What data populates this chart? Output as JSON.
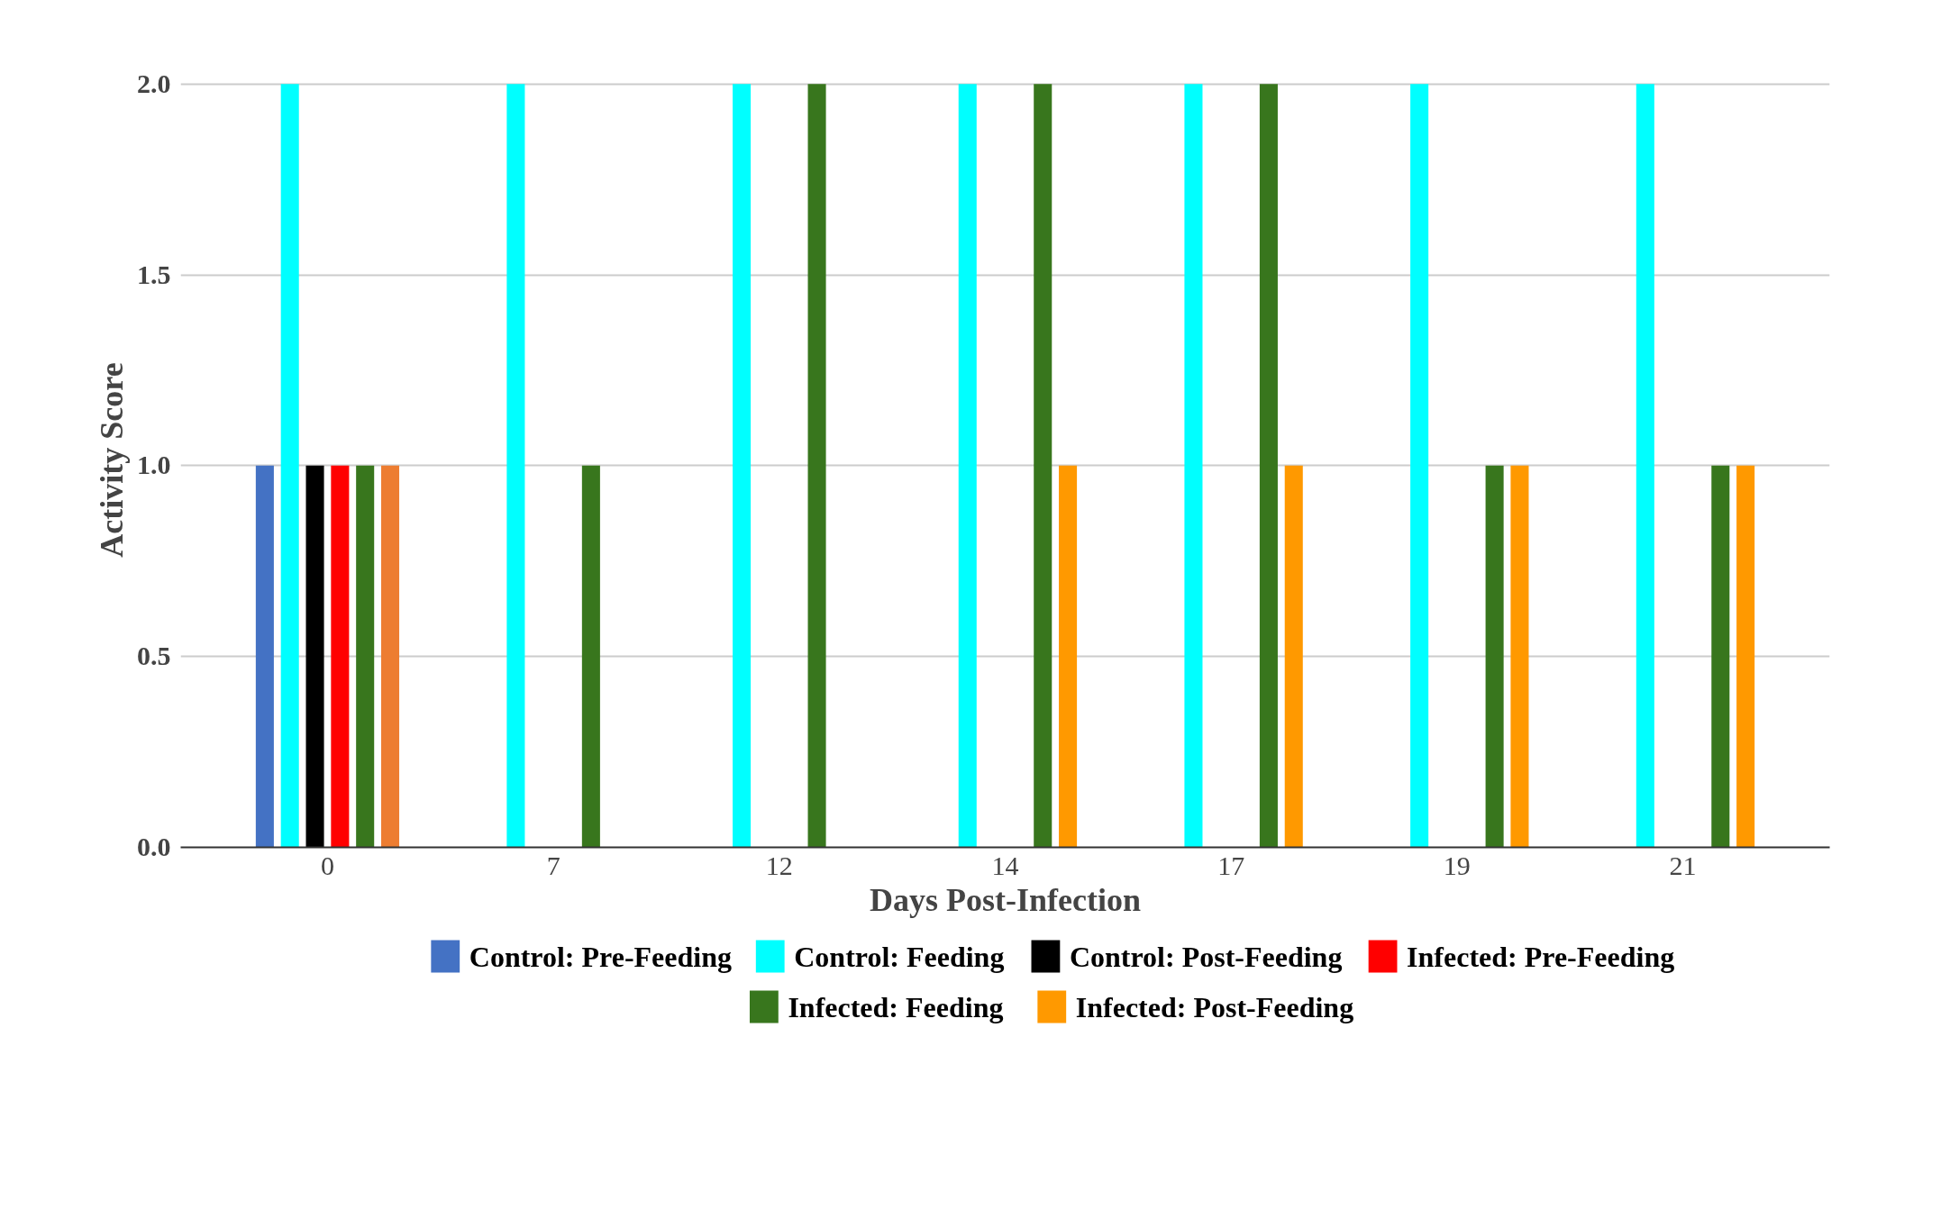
{
  "chart_data": {
    "type": "bar",
    "xlabel": "Days Post-Infection",
    "ylabel": "Activity Score",
    "categories": [
      "0",
      "7",
      "12",
      "14",
      "17",
      "19",
      "21"
    ],
    "series": [
      {
        "name": "Control: Pre-Feeding",
        "color": "#4472c4",
        "values": [
          1,
          0,
          0,
          0,
          0,
          0,
          0
        ]
      },
      {
        "name": "Control: Feeding",
        "color": "#00ffff",
        "values": [
          2,
          2,
          2,
          2,
          2,
          2,
          2
        ]
      },
      {
        "name": "Control: Post-Feeding",
        "color": "#000000",
        "values": [
          1,
          0,
          0,
          0,
          0,
          0,
          0
        ]
      },
      {
        "name": "Infected: Pre-Feeding",
        "color": "#ff0000",
        "values": [
          1,
          0,
          0,
          0,
          0,
          0,
          0
        ]
      },
      {
        "name": "Infected: Feeding",
        "color": "#38761d",
        "values": [
          1,
          1,
          2,
          2,
          2,
          1,
          1
        ]
      },
      {
        "name": "Infected: Post-Feeding",
        "color": "#ff9900",
        "colors": [
          "#ed7d31",
          "#ff9900",
          "#ff9900",
          "#ff9900",
          "#ff9900",
          "#ff9900",
          "#ff9900"
        ],
        "values": [
          1,
          0,
          0,
          1,
          1,
          1,
          1
        ]
      }
    ],
    "ylim": [
      0,
      2
    ],
    "yticks": [
      {
        "value": 0,
        "label": "0.0"
      },
      {
        "value": 0.5,
        "label": "0.5"
      },
      {
        "value": 1,
        "label": "1.0"
      },
      {
        "value": 1.5,
        "label": "1.5"
      },
      {
        "value": 2,
        "label": "2.0"
      }
    ],
    "grid": "y",
    "legend": "bottom"
  }
}
